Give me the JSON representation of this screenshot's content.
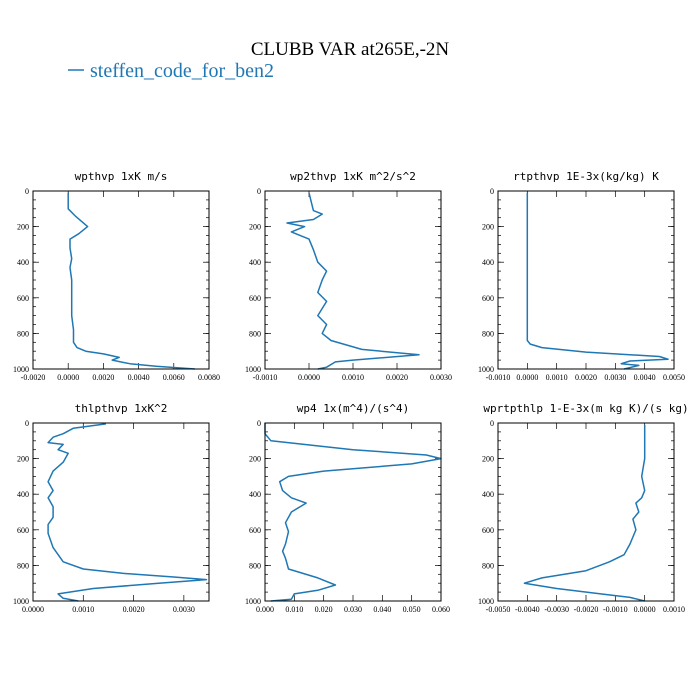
{
  "figure": {
    "title": "CLUBB VAR at265E,-2N",
    "legend": {
      "label": "steffen_code_for_ben2",
      "color": "#1f77b4"
    }
  },
  "chart_data": [
    {
      "type": "line",
      "title": "wpthvp  1xK m/s",
      "xlim": [
        -0.002,
        0.008
      ],
      "xticks": [
        -0.002,
        0,
        0.002,
        0.004,
        0.006,
        0.008
      ],
      "xticklabels": [
        "-0.0020",
        "0.0000",
        "0.0020",
        "0.0040",
        "0.0060",
        "0.0080"
      ],
      "ylim": [
        1000,
        0
      ],
      "yticks": [
        0,
        200,
        400,
        600,
        800,
        1000
      ],
      "yticklabels": [
        "0",
        "200",
        "400",
        "600",
        "800",
        "1000"
      ],
      "series": [
        {
          "color": "#1f77b4",
          "x": [
            0.0,
            0.0,
            0.0004,
            0.0011,
            0.0006,
            0.0001,
            0.0001,
            0.0002,
            0.0001,
            0.0002,
            0.0002,
            0.0002,
            0.0003,
            0.0003,
            0.0005,
            0.001,
            0.002,
            0.0029,
            0.0025,
            0.0035,
            0.005,
            0.0065,
            0.0072
          ],
          "y": [
            10,
            100,
            140,
            200,
            240,
            270,
            320,
            380,
            430,
            500,
            600,
            700,
            780,
            850,
            880,
            900,
            915,
            935,
            950,
            970,
            985,
            995,
            1000
          ]
        }
      ]
    },
    {
      "type": "line",
      "title": "wp2thvp  1xK m^2/s^2",
      "xlim": [
        -0.001,
        0.003
      ],
      "xticks": [
        -0.001,
        0,
        0.001,
        0.002,
        0.003
      ],
      "xticklabels": [
        "-0.0010",
        "0.0000",
        "0.0010",
        "0.0020",
        "0.0030"
      ],
      "ylim": [
        1000,
        0
      ],
      "yticks": [
        0,
        200,
        400,
        600,
        800,
        1000
      ],
      "yticklabels": [
        "0",
        "200",
        "400",
        "600",
        "800",
        "1000"
      ],
      "series": [
        {
          "color": "#1f77b4",
          "x": [
            0.0,
            0.0001,
            0.0003,
            0.0001,
            -0.0005,
            -0.0001,
            -0.0004,
            0.0,
            0.0001,
            0.0002,
            0.0004,
            0.0003,
            0.0002,
            0.0004,
            0.0002,
            0.0004,
            0.0003,
            0.0005,
            0.0012,
            0.0025,
            0.001,
            0.0006,
            0.0004,
            0.0002
          ],
          "y": [
            10,
            110,
            130,
            160,
            180,
            200,
            230,
            270,
            330,
            400,
            450,
            500,
            570,
            620,
            700,
            750,
            800,
            840,
            890,
            920,
            950,
            960,
            990,
            1000
          ]
        }
      ]
    },
    {
      "type": "line",
      "title": "rtpthvp  1E-3x(kg/kg) K",
      "xlim": [
        -0.001,
        0.005
      ],
      "xticks": [
        -0.001,
        0,
        0.001,
        0.002,
        0.003,
        0.004,
        0.005
      ],
      "xticklabels": [
        "-0.0010",
        "0.0000",
        "0.0010",
        "0.0020",
        "0.0030",
        "0.0040",
        "0.0050"
      ],
      "ylim": [
        1000,
        0
      ],
      "yticks": [
        0,
        200,
        400,
        600,
        800,
        1000
      ],
      "yticklabels": [
        "0",
        "200",
        "400",
        "600",
        "800",
        "1000"
      ],
      "series": [
        {
          "color": "#1f77b4",
          "x": [
            0.0,
            0.0,
            0.0,
            0.0,
            0.0,
            0.0,
            0.0001,
            0.0005,
            0.002,
            0.0045,
            0.0048,
            0.0035,
            0.0032,
            0.0038,
            0.0033
          ],
          "y": [
            10,
            200,
            400,
            600,
            800,
            840,
            860,
            880,
            905,
            930,
            945,
            955,
            970,
            980,
            1000
          ]
        }
      ]
    },
    {
      "type": "line",
      "title": "thlpthvp  1xK^2",
      "xlim": [
        0,
        0.0035
      ],
      "xticks": [
        0,
        0.001,
        0.002,
        0.003
      ],
      "xticklabels": [
        "0.0000",
        "0.0010",
        "0.0020",
        "0.0030"
      ],
      "ylim": [
        1000,
        0
      ],
      "yticks": [
        0,
        200,
        400,
        600,
        800,
        1000
      ],
      "yticklabels": [
        "0",
        "200",
        "400",
        "600",
        "800",
        "1000"
      ],
      "series": [
        {
          "color": "#1f77b4",
          "x": [
            0.00145,
            0.0008,
            0.0006,
            0.0004,
            0.0003,
            0.0006,
            0.0005,
            0.0007,
            0.0006,
            0.0004,
            0.0003,
            0.0004,
            0.0003,
            0.0004,
            0.0004,
            0.0003,
            0.0003,
            0.0004,
            0.0006,
            0.001,
            0.0018,
            0.0028,
            0.00345,
            0.0025,
            0.0012,
            0.0005,
            0.0006,
            0.0009
          ],
          "y": [
            5,
            30,
            60,
            80,
            110,
            120,
            150,
            170,
            220,
            270,
            330,
            380,
            420,
            470,
            530,
            570,
            620,
            700,
            780,
            820,
            845,
            865,
            880,
            900,
            930,
            960,
            985,
            1000
          ]
        }
      ]
    },
    {
      "type": "line",
      "title": "wp4  1x(m^4)/(s^4)",
      "xlim": [
        0,
        0.06
      ],
      "xticks": [
        0,
        0.01,
        0.02,
        0.03,
        0.04,
        0.05,
        0.06
      ],
      "xticklabels": [
        "0.000",
        "0.010",
        "0.020",
        "0.030",
        "0.040",
        "0.050",
        "0.060"
      ],
      "ylim": [
        1000,
        0
      ],
      "yticks": [
        0,
        200,
        400,
        600,
        800,
        1000
      ],
      "yticklabels": [
        "0",
        "200",
        "400",
        "600",
        "800",
        "1000"
      ],
      "series": [
        {
          "color": "#1f77b4",
          "x": [
            0.0,
            0.0,
            0.002,
            0.03,
            0.055,
            0.06,
            0.05,
            0.02,
            0.008,
            0.005,
            0.006,
            0.009,
            0.014,
            0.009,
            0.007,
            0.008,
            0.007,
            0.006,
            0.007,
            0.008,
            0.018,
            0.024,
            0.018,
            0.01,
            0.009,
            0.002
          ],
          "y": [
            0,
            60,
            100,
            150,
            180,
            200,
            230,
            270,
            300,
            330,
            380,
            420,
            450,
            500,
            560,
            610,
            680,
            720,
            760,
            820,
            870,
            910,
            940,
            960,
            990,
            1000
          ]
        }
      ]
    },
    {
      "type": "line",
      "title": "wprtpthlp  1-E-3x(m kg K)/(s kg)",
      "xlim": [
        -0.005,
        0.001
      ],
      "xticks": [
        -0.005,
        -0.004,
        -0.003,
        -0.002,
        -0.001,
        0,
        0.001
      ],
      "xticklabels": [
        "-0.0050",
        "-0.0040",
        "-0.0030",
        "-0.0020",
        "-0.0010",
        "0.0000",
        "0.0010"
      ],
      "ylim": [
        1000,
        0
      ],
      "yticks": [
        0,
        200,
        400,
        600,
        800,
        1000
      ],
      "yticklabels": [
        "0",
        "200",
        "400",
        "600",
        "800",
        "1000"
      ],
      "series": [
        {
          "color": "#1f77b4",
          "x": [
            0.0,
            0.0,
            -0.0001,
            0.0,
            -0.0001,
            -0.0003,
            -0.0002,
            -0.0004,
            -0.0003,
            -0.0005,
            -0.0007,
            -0.0012,
            -0.002,
            -0.0035,
            -0.0041,
            -0.003,
            -0.0015,
            -0.0005,
            0.0
          ],
          "y": [
            10,
            200,
            300,
            380,
            420,
            450,
            500,
            540,
            600,
            680,
            740,
            780,
            830,
            870,
            900,
            930,
            960,
            980,
            1000
          ]
        }
      ]
    }
  ]
}
